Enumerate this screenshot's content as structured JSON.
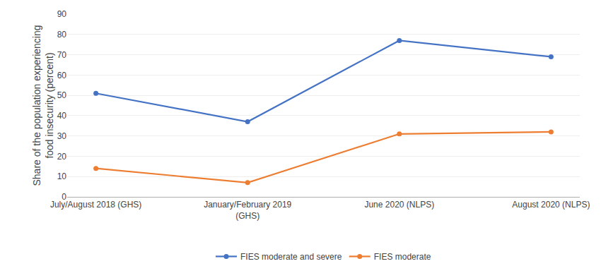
{
  "chart_data": {
    "type": "line",
    "categories": [
      "July/August 2018 (GHS)",
      "January/February 2019\n(GHS)",
      "June 2020 (NLPS)",
      "August 2020 (NLPS)"
    ],
    "series": [
      {
        "name": "FIES moderate and severe",
        "values": [
          51,
          37,
          77,
          69
        ],
        "color": "#4472C4"
      },
      {
        "name": "FIES moderate",
        "values": [
          14,
          7,
          31,
          32
        ],
        "color": "#ED7D31"
      }
    ],
    "ylabel": "Share of the population experiencing\nfood insecurity (percent)",
    "ylim": [
      0,
      90
    ],
    "yticks": [
      0,
      10,
      20,
      30,
      40,
      50,
      60,
      70,
      80,
      90
    ],
    "grid": true,
    "legend": "bottom",
    "marker": "circle"
  }
}
